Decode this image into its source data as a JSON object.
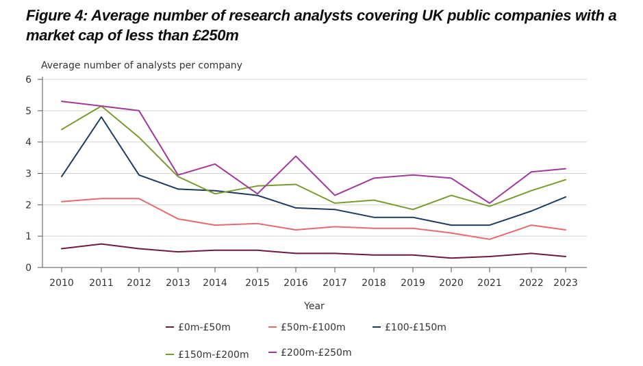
{
  "figure": {
    "title": "Figure 4: Average number of research analysts covering UK public companies with a market cap of less than £250m"
  },
  "chart_data": {
    "type": "line",
    "title": "Figure 4: Average number of research analysts covering UK public companies with a market cap of less than £250m",
    "xlabel": "Year",
    "ylabel": "Average number of analysts per company",
    "ylim": [
      0,
      6
    ],
    "yticks": [
      0,
      1,
      2,
      3,
      4,
      5,
      6
    ],
    "grid": true,
    "legend_position": "bottom",
    "categories": [
      "2010",
      "2011",
      "2012",
      "2013",
      "2014",
      "2015",
      "2016",
      "2017",
      "2018",
      "2019",
      "2020",
      "2021",
      "2022",
      "2023"
    ],
    "series": [
      {
        "name": "£0m-£50m",
        "color": "#6b1a3f",
        "values": [
          0.6,
          0.75,
          0.6,
          0.5,
          0.55,
          0.55,
          0.45,
          0.45,
          0.4,
          0.4,
          0.3,
          0.35,
          0.45,
          0.35
        ]
      },
      {
        "name": "£50m-£100m",
        "color": "#e86870",
        "values": [
          2.1,
          2.2,
          2.2,
          1.55,
          1.35,
          1.4,
          1.2,
          1.3,
          1.25,
          1.25,
          1.1,
          0.9,
          1.35,
          1.2
        ]
      },
      {
        "name": "£100-£150m",
        "color": "#1c3a5e",
        "values": [
          2.9,
          4.8,
          2.95,
          2.5,
          2.45,
          2.3,
          1.9,
          1.85,
          1.6,
          1.6,
          1.35,
          1.35,
          1.8,
          2.25
        ]
      },
      {
        "name": "£150m-£200m",
        "color": "#7a9a2e",
        "values": [
          4.4,
          5.15,
          4.15,
          2.9,
          2.35,
          2.6,
          2.65,
          2.05,
          2.15,
          1.85,
          2.3,
          1.95,
          2.45,
          2.8
        ]
      },
      {
        "name": "£200m-£250m",
        "color": "#a0379a",
        "values": [
          5.3,
          5.15,
          5.0,
          2.95,
          3.3,
          2.35,
          3.55,
          2.3,
          2.85,
          2.95,
          2.85,
          2.05,
          3.05,
          3.15
        ]
      }
    ]
  }
}
